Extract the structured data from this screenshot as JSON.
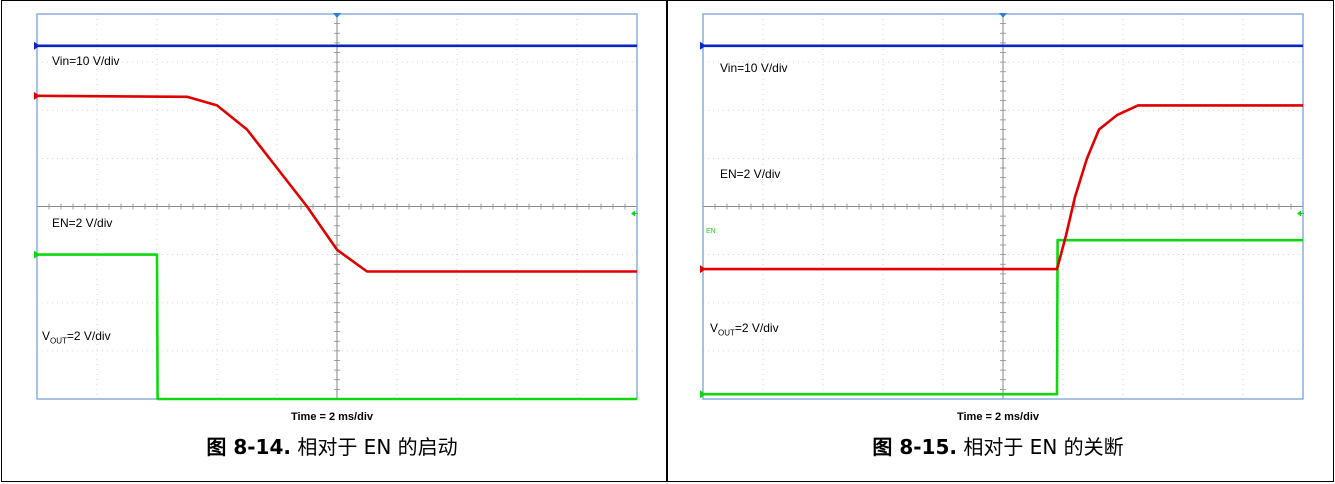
{
  "chart_data": [
    {
      "type": "line",
      "title": "",
      "xlabel": "Time = 2 ms/div",
      "ylabel": "",
      "caption": {
        "figure": "图 8-14.",
        "text": "相对于 EN 的启动"
      },
      "x_unit": "ms",
      "xlim": [
        0,
        20
      ],
      "grid": {
        "x_divisions": 10,
        "y_divisions": 8
      },
      "trace_labels": {
        "vin": "Vin=10 V/div",
        "en": "EN=2 V/div",
        "vout_prefix": "V",
        "vout_sub": "OUT",
        "vout_suffix": "=2 V/div"
      },
      "series": [
        {
          "key": "vin",
          "color": "#0b24c8",
          "x": [
            0,
            20
          ],
          "y": [
            0.66,
            0.66
          ]
        },
        {
          "key": "en",
          "color": "#10d810",
          "x": [
            0,
            4.0,
            4.02,
            20
          ],
          "y": [
            5.0,
            5.0,
            8.0,
            8.0
          ]
        },
        {
          "key": "vout",
          "color": "#e00000",
          "x": [
            0,
            5.0,
            6.0,
            7.0,
            8.0,
            9.0,
            10.0,
            11.0,
            20
          ],
          "y": [
            1.7,
            1.72,
            1.9,
            2.4,
            3.2,
            4.0,
            4.9,
            5.35,
            5.35
          ]
        }
      ]
    },
    {
      "type": "line",
      "title": "",
      "xlabel": "Time = 2 ms/div",
      "ylabel": "",
      "caption": {
        "figure": "图 8-15.",
        "text": "相对于 EN 的关断"
      },
      "x_unit": "ms",
      "xlim": [
        0,
        20
      ],
      "grid": {
        "x_divisions": 10,
        "y_divisions": 8
      },
      "trace_labels": {
        "vin": "Vin=10 V/div",
        "en": "EN=2 V/div",
        "vout_prefix": "V",
        "vout_sub": "OUT",
        "vout_suffix": "=2 V/div",
        "en_marker": "EN"
      },
      "series": [
        {
          "key": "vin",
          "color": "#0b24c8",
          "x": [
            0,
            20
          ],
          "y": [
            0.66,
            0.66
          ]
        },
        {
          "key": "en",
          "color": "#10d810",
          "x": [
            0,
            11.8,
            11.82,
            20
          ],
          "y": [
            7.9,
            7.9,
            4.7,
            4.7
          ]
        },
        {
          "key": "vout",
          "color": "#e00000",
          "x": [
            0,
            11.8,
            12.1,
            12.4,
            12.8,
            13.2,
            13.8,
            14.5,
            20
          ],
          "y": [
            5.3,
            5.3,
            4.6,
            3.8,
            3.0,
            2.4,
            2.1,
            1.9,
            1.9
          ]
        }
      ]
    }
  ]
}
